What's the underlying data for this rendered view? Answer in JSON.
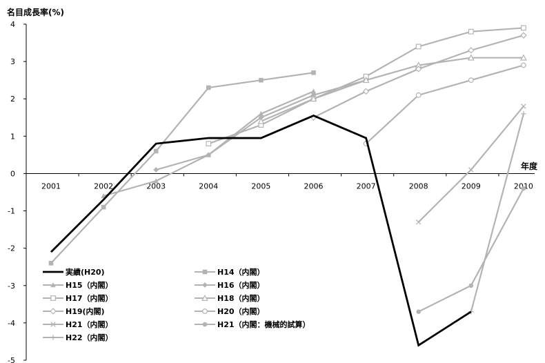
{
  "chart_data": {
    "type": "line",
    "title": "",
    "ylabel": "名目成長率(%)",
    "xlabel": "年度",
    "ylim": [
      -5,
      4
    ],
    "yticks": [
      4,
      3,
      2,
      1,
      0,
      -1,
      -2,
      -3,
      -4,
      -5
    ],
    "categories": [
      "2001",
      "2002",
      "2003",
      "2004",
      "2005",
      "2006",
      "2007",
      "2008",
      "2009",
      "2010"
    ],
    "grid": false,
    "legend_position": "bottom-left",
    "series": [
      {
        "name": "実績(H20)",
        "color": "#000000",
        "marker": "none",
        "values": [
          -2.1,
          -0.7,
          0.8,
          0.95,
          0.95,
          1.55,
          0.95,
          -4.6,
          -3.7,
          null
        ]
      },
      {
        "name": "H14（内閣）",
        "color": "#b3b3b3",
        "marker": "square",
        "values": [
          -2.4,
          -0.9,
          0.6,
          2.3,
          2.5,
          2.7,
          null,
          null,
          null,
          null
        ]
      },
      {
        "name": "H15（内閣）",
        "color": "#b3b3b3",
        "marker": "triangle",
        "values": [
          null,
          -0.6,
          -0.2,
          0.5,
          1.6,
          2.2,
          null,
          null,
          null,
          null
        ]
      },
      {
        "name": "H16（内閣）",
        "color": "#b3b3b3",
        "marker": "diamond",
        "values": [
          null,
          null,
          0.1,
          0.5,
          1.5,
          2.1,
          2.5,
          null,
          null,
          null
        ]
      },
      {
        "name": "H17（内閣）",
        "color": "#b3b3b3",
        "marker": "square-open",
        "values": [
          null,
          null,
          null,
          0.8,
          1.3,
          2.0,
          2.6,
          3.4,
          3.8,
          3.9
        ]
      },
      {
        "name": "H18（内閣）",
        "color": "#b3b3b3",
        "marker": "triangle-open",
        "values": [
          null,
          null,
          null,
          null,
          1.4,
          2.0,
          2.5,
          2.9,
          3.1,
          3.1
        ]
      },
      {
        "name": "H19(内閣)",
        "color": "#b3b3b3",
        "marker": "diamond-open",
        "values": [
          null,
          null,
          null,
          null,
          null,
          1.5,
          2.2,
          2.8,
          3.3,
          3.7
        ]
      },
      {
        "name": "H20（内閣）",
        "color": "#b3b3b3",
        "marker": "circle-open",
        "values": [
          null,
          null,
          null,
          null,
          null,
          null,
          0.8,
          2.1,
          2.5,
          2.9
        ]
      },
      {
        "name": "H21（内閣）",
        "color": "#b3b3b3",
        "marker": "x",
        "values": [
          null,
          null,
          null,
          null,
          null,
          null,
          null,
          -1.3,
          0.1,
          1.8
        ]
      },
      {
        "name": "H21（内閣：機械的試算）",
        "color": "#b3b3b3",
        "marker": "circle",
        "values": [
          null,
          null,
          null,
          null,
          null,
          null,
          null,
          -3.7,
          -3.0,
          -0.4
        ]
      },
      {
        "name": "H22（内閣）",
        "color": "#b3b3b3",
        "marker": "plus",
        "values": [
          null,
          null,
          null,
          null,
          null,
          null,
          null,
          null,
          -3.7,
          1.6
        ]
      }
    ]
  }
}
